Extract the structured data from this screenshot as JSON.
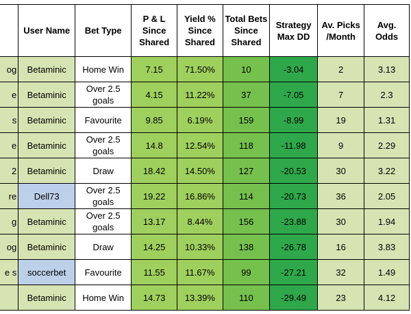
{
  "headers": [
    "",
    "User Name",
    "Bet Type",
    "P & L Since Shared",
    "Yield % Since Shared",
    "Total Bets Since Shared",
    "Strategy Max DD",
    "Av. Picks /Month",
    "Avg. Odds"
  ],
  "rows": [
    {
      "name": "og",
      "user": "Betaminic",
      "user_color": "light",
      "bet_type": "Home Win",
      "pl": "7.15",
      "yield": "71.50%",
      "bets": "10",
      "dd": "-3.04",
      "picks": "2",
      "odds": "3.13"
    },
    {
      "name": "e",
      "user": "Betaminic",
      "user_color": "light",
      "bet_type": "Over 2.5 goals",
      "pl": "4.15",
      "yield": "11.22%",
      "bets": "37",
      "dd": "-7.05",
      "picks": "7",
      "odds": "2.3"
    },
    {
      "name": "s",
      "user": "Betaminic",
      "user_color": "light",
      "bet_type": "Favourite",
      "pl": "9.85",
      "yield": "6.19%",
      "bets": "159",
      "dd": "-8.99",
      "picks": "19",
      "odds": "1.31"
    },
    {
      "name": "e",
      "user": "Betaminic",
      "user_color": "light",
      "bet_type": "Over 2.5 goals",
      "pl": "14.8",
      "yield": "12.54%",
      "bets": "118",
      "dd": "-11.98",
      "picks": "9",
      "odds": "2.29"
    },
    {
      "name": "2",
      "user": "Betaminic",
      "user_color": "light",
      "bet_type": "Draw",
      "pl": "18.42",
      "yield": "14.50%",
      "bets": "127",
      "dd": "-20.53",
      "picks": "30",
      "odds": "3.22"
    },
    {
      "name": "re",
      "user": "Dell73",
      "user_color": "blue",
      "bet_type": "Over 2.5 goals",
      "pl": "19.22",
      "yield": "16.86%",
      "bets": "114",
      "dd": "-20.73",
      "picks": "36",
      "odds": "2.05"
    },
    {
      "name": "g",
      "user": "Betaminic",
      "user_color": "light",
      "bet_type": "Over 2.5 goals",
      "pl": "13.17",
      "yield": "8.44%",
      "bets": "156",
      "dd": "-23.88",
      "picks": "30",
      "odds": "1.94"
    },
    {
      "name": "og",
      "user": "Betaminic",
      "user_color": "light",
      "bet_type": "Draw",
      "pl": "14.25",
      "yield": "10.33%",
      "bets": "138",
      "dd": "-26.78",
      "picks": "16",
      "odds": "3.83"
    },
    {
      "name": "e s",
      "user": "soccerbet",
      "user_color": "blue",
      "bet_type": "Favourite",
      "pl": "11.55",
      "yield": "11.67%",
      "bets": "99",
      "dd": "-27.21",
      "picks": "32",
      "odds": "1.49"
    },
    {
      "name": "",
      "user": "Betaminic",
      "user_color": "light",
      "bet_type": "Home Win",
      "pl": "14.73",
      "yield": "13.39%",
      "bets": "110",
      "dd": "-29.49",
      "picks": "23",
      "odds": "4.12"
    }
  ]
}
